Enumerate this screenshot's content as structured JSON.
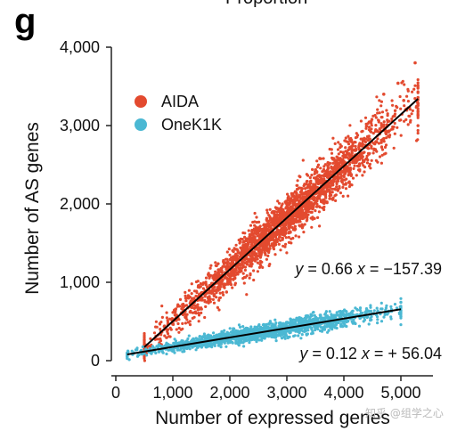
{
  "panel_label": "g",
  "top_partial_text": "Proportion",
  "watermark": "知乎 @组学之心",
  "chart_data": {
    "type": "scatter",
    "title": "",
    "xlabel": "Number of expressed genes",
    "ylabel": "Number of AS genes",
    "xlim": [
      0,
      5500
    ],
    "ylim": [
      0,
      4000
    ],
    "xticks": [
      0,
      1000,
      2000,
      3000,
      4000,
      5000
    ],
    "xtick_labels": [
      "0",
      "1,000",
      "2,000",
      "3,000",
      "4,000",
      "5,000"
    ],
    "yticks": [
      0,
      1000,
      2000,
      3000,
      4000
    ],
    "ytick_labels": [
      "0",
      "1,000",
      "2,000",
      "3,000",
      "4,000"
    ],
    "grid": false,
    "legend_position": "top-left",
    "series": [
      {
        "name": "AIDA",
        "color": "#E34A2F",
        "x_range": [
          500,
          5300
        ],
        "fit": {
          "slope": 0.66,
          "intercept": -157.39,
          "x_from": 500,
          "x_to": 5300
        },
        "equation": {
          "y": "y",
          "eq1": "= 0.66",
          "x": "x",
          "eq2": "= −157.39"
        }
      },
      {
        "name": "OneK1K",
        "color": "#4BB8D3",
        "x_range": [
          200,
          5000
        ],
        "fit": {
          "slope": 0.12,
          "intercept": 56.04,
          "x_from": 200,
          "x_to": 5000
        },
        "equation": {
          "y": "y",
          "eq1": "= 0.12",
          "x": "x",
          "eq2": "= + 56.04"
        }
      }
    ],
    "trend_line_color": "#000000"
  }
}
